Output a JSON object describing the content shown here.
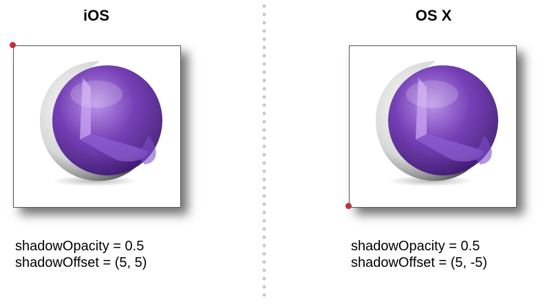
{
  "panels": [
    {
      "title": "iOS",
      "captions": [
        "shadowOpacity = 0.5",
        "shadowOffset = (5, 5)"
      ],
      "origin_corner": "top-left"
    },
    {
      "title": "OS X",
      "captions": [
        "shadowOpacity = 0.5",
        "shadowOffset = (5, -5)"
      ],
      "origin_corner": "bottom-left"
    }
  ],
  "colors": {
    "origin_dot": "#c0303a",
    "sphere_purple": "#6a2fb0",
    "divider_dots": "#c8c8c8"
  },
  "icons": {
    "content_image": "purple-sphere-icon"
  }
}
